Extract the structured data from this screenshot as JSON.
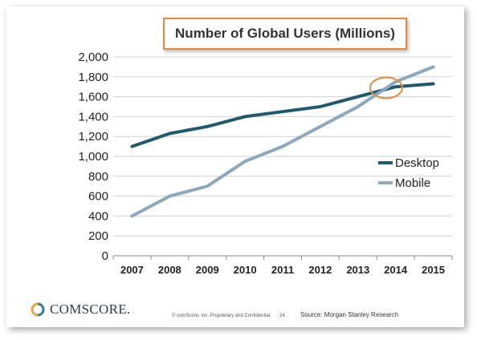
{
  "chart_data": {
    "type": "line",
    "title": "Number of Global Users (Millions)",
    "categories": [
      "2007",
      "2008",
      "2009",
      "2010",
      "2011",
      "2012",
      "2013",
      "2014",
      "2015"
    ],
    "y_ticks": [
      "0",
      "200",
      "400",
      "600",
      "800",
      "1,000",
      "1,200",
      "1,400",
      "1,600",
      "1,800",
      "2,000"
    ],
    "ylim": [
      0,
      2000
    ],
    "grid": true,
    "legend_position": "right",
    "series": [
      {
        "name": "Desktop",
        "color": "#1f5a73",
        "values": [
          1100,
          1230,
          1300,
          1400,
          1450,
          1500,
          1600,
          1700,
          1730
        ]
      },
      {
        "name": "Mobile",
        "color": "#8aa9c0",
        "values": [
          400,
          600,
          700,
          950,
          1100,
          1300,
          1500,
          1750,
          1900
        ]
      }
    ],
    "highlight_color": "#e8893a"
  },
  "footer": {
    "logo_text": "COMSCORE.",
    "copyright": "© comScore, Inc.  Proprietary and Confidential.",
    "page_number": "24",
    "source": "Source: Morgan Stanley Research"
  }
}
